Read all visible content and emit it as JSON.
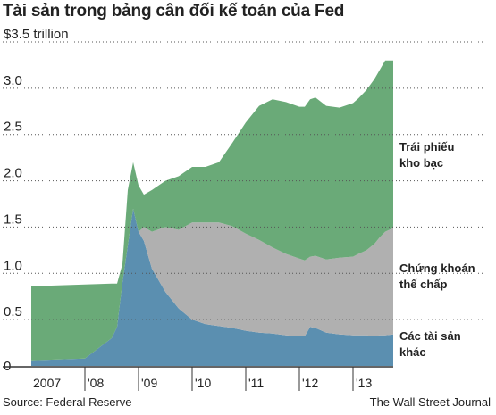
{
  "chart_data": {
    "type": "area",
    "title": "Tài sản trong bảng cân đối kế toán của Fed",
    "stacked": true,
    "ylim": [
      0,
      3.5
    ],
    "xlim": [
      2007.0,
      2013.75
    ],
    "grid": "horizontal dotted",
    "y_ticks": [
      {
        "value": 0,
        "label": "0"
      },
      {
        "value": 0.5,
        "label": "0.5"
      },
      {
        "value": 1.0,
        "label": "1.0"
      },
      {
        "value": 1.5,
        "label": "1.5"
      },
      {
        "value": 2.0,
        "label": "2.0"
      },
      {
        "value": 2.5,
        "label": "2.5"
      },
      {
        "value": 3.0,
        "label": "3.0"
      },
      {
        "value": 3.5,
        "label": "$3.5 trillion"
      }
    ],
    "x_ticks": [
      {
        "value": 2007,
        "label": "2007"
      },
      {
        "value": 2008,
        "label": "'08"
      },
      {
        "value": 2009,
        "label": "'09"
      },
      {
        "value": 2010,
        "label": "'10"
      },
      {
        "value": 2011,
        "label": "'11"
      },
      {
        "value": 2012,
        "label": "'12"
      },
      {
        "value": 2013,
        "label": "'13"
      }
    ],
    "x": [
      2007.0,
      2007.5,
      2008.0,
      2008.5,
      2008.6,
      2008.7,
      2008.8,
      2008.9,
      2009.0,
      2009.1,
      2009.25,
      2009.5,
      2009.75,
      2010.0,
      2010.25,
      2010.5,
      2010.75,
      2011.0,
      2011.25,
      2011.5,
      2011.75,
      2012.0,
      2012.1,
      2012.2,
      2012.3,
      2012.5,
      2012.75,
      2013.0,
      2013.1,
      2013.25,
      2013.4,
      2013.5,
      2013.6,
      2013.75
    ],
    "series": [
      {
        "name": "Các tài sản khác",
        "color": "#5b8fb0",
        "values": [
          0.06,
          0.07,
          0.08,
          0.3,
          0.42,
          0.9,
          1.3,
          1.7,
          1.45,
          1.35,
          1.05,
          0.8,
          0.62,
          0.5,
          0.45,
          0.43,
          0.41,
          0.38,
          0.36,
          0.35,
          0.33,
          0.32,
          0.32,
          0.42,
          0.41,
          0.36,
          0.34,
          0.33,
          0.33,
          0.33,
          0.32,
          0.33,
          0.33,
          0.34
        ]
      },
      {
        "name": "Chứng khoán thế chấp",
        "color": "#b0b0b0",
        "values": [
          0,
          0,
          0,
          0,
          0,
          0,
          0,
          0,
          0,
          0.15,
          0.4,
          0.7,
          0.85,
          1.05,
          1.1,
          1.12,
          1.1,
          1.05,
          1.0,
          0.93,
          0.88,
          0.84,
          0.82,
          0.76,
          0.78,
          0.79,
          0.83,
          0.85,
          0.88,
          0.92,
          1.0,
          1.06,
          1.12,
          1.15
        ]
      },
      {
        "name": "Trái phiếu kho bạc",
        "color": "#6aaa78",
        "values": [
          0.8,
          0.8,
          0.8,
          0.59,
          0.47,
          0.2,
          0.6,
          0.5,
          0.5,
          0.35,
          0.45,
          0.5,
          0.58,
          0.6,
          0.6,
          0.65,
          0.9,
          1.2,
          1.45,
          1.6,
          1.64,
          1.64,
          1.66,
          1.7,
          1.71,
          1.66,
          1.62,
          1.66,
          1.68,
          1.73,
          1.78,
          1.81,
          1.85,
          1.81
        ]
      }
    ],
    "source": "Source: Federal Reserve",
    "credit": "The Wall Street Journal"
  },
  "labels": {
    "treasuries": "Trái phiếu\nkho bạc",
    "mbs": "Chứng khoán\nthế chấp",
    "other": "Các tài sản\nkhác"
  }
}
